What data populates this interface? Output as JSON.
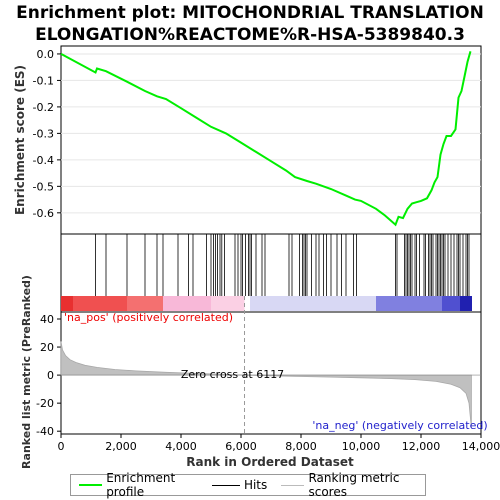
{
  "chart_data": {
    "type": "line",
    "title_lines": [
      "Enrichment plot: MITOCHONDRIAL TRANSLATION",
      "ELONGATION%REACTOME%R-HSA-5389840.3"
    ],
    "top_panel": {
      "ylabel": "Enrichment score (ES)",
      "ylim": [
        -0.68,
        0.03
      ],
      "yticks": [
        0.0,
        -0.1,
        -0.2,
        -0.3,
        -0.4,
        -0.5,
        -0.6
      ],
      "ytick_labels": [
        "0.0",
        "-0.1",
        "-0.2",
        "-0.3",
        "-0.4",
        "-0.5",
        "-0.6"
      ],
      "series": [
        {
          "name": "Enrichment profile",
          "color": "#00ee00",
          "x": [
            0,
            1150,
            1200,
            1500,
            2200,
            2800,
            3200,
            3500,
            4000,
            4500,
            5000,
            5500,
            6000,
            6500,
            7000,
            7500,
            7800,
            8200,
            8500,
            9000,
            9500,
            9800,
            10000,
            10500,
            10800,
            11150,
            11250,
            11400,
            11550,
            11700,
            11850,
            12000,
            12200,
            12350,
            12450,
            12550,
            12650,
            12750,
            12850,
            13000,
            13150,
            13250,
            13350,
            13450,
            13550,
            13650
          ],
          "y": [
            0.0,
            -0.07,
            -0.055,
            -0.065,
            -0.105,
            -0.14,
            -0.16,
            -0.17,
            -0.205,
            -0.24,
            -0.275,
            -0.3,
            -0.335,
            -0.37,
            -0.405,
            -0.44,
            -0.465,
            -0.48,
            -0.49,
            -0.51,
            -0.535,
            -0.55,
            -0.555,
            -0.585,
            -0.61,
            -0.645,
            -0.615,
            -0.62,
            -0.585,
            -0.565,
            -0.56,
            -0.555,
            -0.545,
            -0.515,
            -0.485,
            -0.465,
            -0.38,
            -0.34,
            -0.31,
            -0.31,
            -0.285,
            -0.165,
            -0.14,
            -0.085,
            -0.03,
            0.01
          ]
        }
      ]
    },
    "hits": {
      "name": "Hits",
      "positions": [
        1150,
        1500,
        2200,
        2800,
        3200,
        3400,
        3900,
        4250,
        4400,
        4850,
        5000,
        5080,
        5150,
        5220,
        5300,
        5360,
        5450,
        5800,
        5900,
        6000,
        6050,
        6150,
        6250,
        6300,
        6350,
        6500,
        6700,
        6800,
        7600,
        7700,
        7950,
        8050,
        8100,
        8150,
        8200,
        8350,
        8500,
        8600,
        8750,
        8850,
        9000,
        9200,
        9350,
        9500,
        9750,
        9850,
        11150,
        11200,
        11450,
        11500,
        11550,
        11600,
        11650,
        11700,
        11800,
        11850,
        11950,
        12100,
        12150,
        12250,
        12300,
        12350,
        12400,
        12500,
        12550,
        12600,
        12650,
        12700,
        12750,
        12800,
        12900,
        13000,
        13100,
        13200,
        13250,
        13300,
        13400,
        13500,
        13550,
        13600
      ]
    },
    "rank_panel": {
      "name": "Ranking metric scores",
      "ylabel": "Ranked list metric (PreRanked)",
      "xlabel": "Rank in Ordered Dataset",
      "ylim": [
        -42,
        45
      ],
      "yticks": [
        40,
        20,
        0,
        -20,
        -40
      ],
      "ytick_labels": [
        "40",
        "20",
        "0",
        "-20",
        "-40"
      ],
      "xlim": [
        0,
        14000
      ],
      "xticks": [
        0,
        2000,
        4000,
        6000,
        8000,
        10000,
        12000,
        14000
      ],
      "xtick_labels": [
        "0",
        "2,000",
        "4,000",
        "6,000",
        "8,000",
        "10,000",
        "12,000",
        "14,000"
      ],
      "metric_curve": {
        "x": [
          0,
          50,
          150,
          300,
          500,
          800,
          1200,
          1800,
          2500,
          3500,
          4500,
          5500,
          6117,
          7000,
          8000,
          9000,
          10000,
          11000,
          11800,
          12500,
          13000,
          13300,
          13500,
          13600,
          13680
        ],
        "y": [
          24,
          18,
          14,
          11,
          9,
          7,
          5.5,
          4,
          3,
          2,
          1.2,
          0.5,
          0,
          -0.5,
          -1,
          -1.4,
          -1.9,
          -2.5,
          -3.2,
          -4.5,
          -6.5,
          -9,
          -13,
          -20,
          -38
        ]
      },
      "zero_cross_label": "Zero cross at 6117",
      "zero_cross": 6117,
      "pos_label": "'na_pos' (positively correlated)",
      "neg_label": "'na_neg' (negatively correlated)"
    },
    "legend": [
      "Enrichment profile",
      "Hits",
      "Ranking metric scores"
    ]
  }
}
